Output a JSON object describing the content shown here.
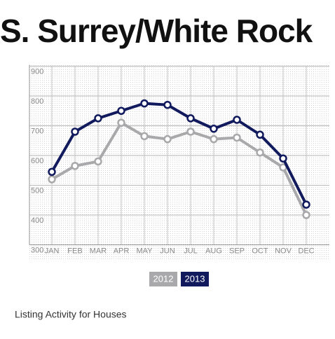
{
  "chart_data": {
    "type": "line",
    "title": "S. Surrey/White Rock",
    "caption": "Listing Activity for Houses",
    "categories": [
      "JAN",
      "FEB",
      "MAR",
      "APR",
      "MAY",
      "JUN",
      "JUL",
      "AUG",
      "SEP",
      "OCT",
      "NOV",
      "DEC"
    ],
    "series": [
      {
        "name": "2012",
        "color": "#a9a9ab",
        "values": [
          520,
          565,
          580,
          710,
          665,
          655,
          680,
          655,
          660,
          610,
          560,
          400
        ]
      },
      {
        "name": "2013",
        "color": "#121a5e",
        "values": [
          545,
          680,
          725,
          750,
          775,
          770,
          725,
          690,
          720,
          670,
          590,
          435
        ]
      }
    ],
    "ylim": [
      300,
      900
    ],
    "yticks": [
      300,
      400,
      500,
      600,
      700,
      800,
      900
    ],
    "grid": true
  }
}
